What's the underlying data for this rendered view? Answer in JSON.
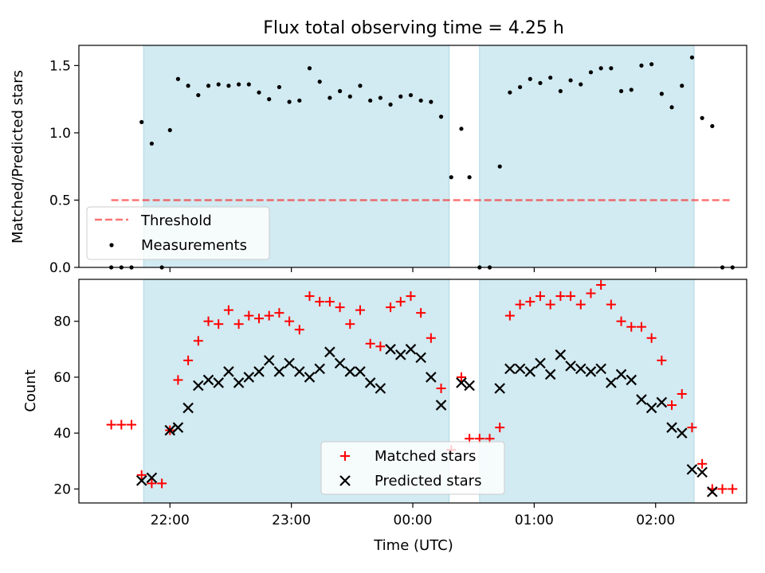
{
  "title": "Flux total observing time = 4.25 h",
  "colors": {
    "shade": "#add8e6",
    "threshold": "#ff0000",
    "measurement": "#000000",
    "matched": "#ff0000",
    "predicted": "#000000"
  },
  "chart_data": [
    {
      "type": "scatter",
      "panel": "top",
      "title": "Flux total observing time = 4.25 h",
      "xlabel": "",
      "ylabel": "Matched/Predicted stars",
      "xlim": [
        "21:15",
        "02:45"
      ],
      "ylim": [
        0,
        1.65
      ],
      "yticks": [
        "0.0",
        "0.5",
        "1.0",
        "1.5"
      ],
      "legend_position": "lower-left",
      "shaded_intervals": [
        [
          "21:47",
          "00:18"
        ],
        [
          "00:33",
          "02:19"
        ]
      ],
      "threshold": {
        "name": "Threshold",
        "y": 0.5,
        "x_range": [
          "21:31",
          "02:38"
        ]
      },
      "series": [
        {
          "name": "Measurements",
          "points": [
            [
              "21:31",
              0
            ],
            [
              "21:36",
              0
            ],
            [
              "21:41",
              0
            ],
            [
              "21:46",
              1.08
            ],
            [
              "21:51",
              0.92
            ],
            [
              "21:56",
              0
            ],
            [
              "22:00",
              1.02
            ],
            [
              "22:04",
              1.4
            ],
            [
              "22:09",
              1.35
            ],
            [
              "22:14",
              1.28
            ],
            [
              "22:19",
              1.35
            ],
            [
              "22:24",
              1.36
            ],
            [
              "22:29",
              1.35
            ],
            [
              "22:34",
              1.36
            ],
            [
              "22:39",
              1.36
            ],
            [
              "22:44",
              1.3
            ],
            [
              "22:49",
              1.25
            ],
            [
              "22:54",
              1.34
            ],
            [
              "22:59",
              1.23
            ],
            [
              "23:04",
              1.24
            ],
            [
              "23:09",
              1.48
            ],
            [
              "23:14",
              1.38
            ],
            [
              "23:19",
              1.26
            ],
            [
              "23:24",
              1.31
            ],
            [
              "23:29",
              1.27
            ],
            [
              "23:34",
              1.35
            ],
            [
              "23:39",
              1.24
            ],
            [
              "23:44",
              1.26
            ],
            [
              "23:49",
              1.21
            ],
            [
              "23:54",
              1.27
            ],
            [
              "23:59",
              1.28
            ],
            [
              "00:04",
              1.24
            ],
            [
              "00:09",
              1.23
            ],
            [
              "00:14",
              1.12
            ],
            [
              "00:19",
              0.67
            ],
            [
              "00:24",
              1.03
            ],
            [
              "00:28",
              0.67
            ],
            [
              "00:33",
              0
            ],
            [
              "00:38",
              0
            ],
            [
              "00:43",
              0.75
            ],
            [
              "00:48",
              1.3
            ],
            [
              "00:53",
              1.34
            ],
            [
              "00:58",
              1.4
            ],
            [
              "01:03",
              1.37
            ],
            [
              "01:08",
              1.41
            ],
            [
              "01:13",
              1.31
            ],
            [
              "01:18",
              1.39
            ],
            [
              "01:23",
              1.36
            ],
            [
              "01:28",
              1.45
            ],
            [
              "01:33",
              1.48
            ],
            [
              "01:38",
              1.48
            ],
            [
              "01:43",
              1.31
            ],
            [
              "01:48",
              1.32
            ],
            [
              "01:53",
              1.5
            ],
            [
              "01:58",
              1.51
            ],
            [
              "02:03",
              1.29
            ],
            [
              "02:08",
              1.19
            ],
            [
              "02:13",
              1.35
            ],
            [
              "02:18",
              1.56
            ],
            [
              "02:23",
              1.11
            ],
            [
              "02:28",
              1.05
            ],
            [
              "02:33",
              0
            ],
            [
              "02:38",
              0
            ]
          ]
        }
      ]
    },
    {
      "type": "scatter",
      "panel": "bottom",
      "xlabel": "Time (UTC)",
      "ylabel": "Count",
      "xlim": [
        "21:15",
        "02:45"
      ],
      "ylim": [
        15,
        95
      ],
      "yticks": [
        "20",
        "40",
        "60",
        "80"
      ],
      "xticks": [
        "22:00",
        "23:00",
        "00:00",
        "01:00",
        "02:00"
      ],
      "legend_position": "lower-center",
      "shaded_intervals": [
        [
          "21:47",
          "00:18"
        ],
        [
          "00:33",
          "02:19"
        ]
      ],
      "series": [
        {
          "name": "Matched stars",
          "marker": "plus",
          "points": [
            [
              "21:31",
              43
            ],
            [
              "21:36",
              43
            ],
            [
              "21:41",
              43
            ],
            [
              "21:46",
              25
            ],
            [
              "21:51",
              22
            ],
            [
              "21:56",
              22
            ],
            [
              "22:00",
              41
            ],
            [
              "22:04",
              59
            ],
            [
              "22:09",
              66
            ],
            [
              "22:14",
              73
            ],
            [
              "22:19",
              80
            ],
            [
              "22:24",
              79
            ],
            [
              "22:29",
              84
            ],
            [
              "22:34",
              79
            ],
            [
              "22:39",
              82
            ],
            [
              "22:44",
              81
            ],
            [
              "22:49",
              82
            ],
            [
              "22:54",
              83
            ],
            [
              "22:59",
              80
            ],
            [
              "23:04",
              77
            ],
            [
              "23:09",
              89
            ],
            [
              "23:14",
              87
            ],
            [
              "23:19",
              87
            ],
            [
              "23:24",
              85
            ],
            [
              "23:29",
              79
            ],
            [
              "23:34",
              84
            ],
            [
              "23:39",
              72
            ],
            [
              "23:44",
              71
            ],
            [
              "23:49",
              85
            ],
            [
              "23:54",
              87
            ],
            [
              "23:59",
              89
            ],
            [
              "00:04",
              83
            ],
            [
              "00:09",
              74
            ],
            [
              "00:14",
              56
            ],
            [
              "00:19",
              34
            ],
            [
              "00:24",
              60
            ],
            [
              "00:28",
              38
            ],
            [
              "00:33",
              38
            ],
            [
              "00:38",
              38
            ],
            [
              "00:43",
              42
            ],
            [
              "00:48",
              82
            ],
            [
              "00:53",
              86
            ],
            [
              "00:58",
              87
            ],
            [
              "01:03",
              89
            ],
            [
              "01:08",
              86
            ],
            [
              "01:13",
              89
            ],
            [
              "01:18",
              89
            ],
            [
              "01:23",
              86
            ],
            [
              "01:28",
              90
            ],
            [
              "01:33",
              93
            ],
            [
              "01:38",
              86
            ],
            [
              "01:43",
              80
            ],
            [
              "01:48",
              78
            ],
            [
              "01:53",
              78
            ],
            [
              "01:58",
              74
            ],
            [
              "02:03",
              66
            ],
            [
              "02:08",
              50
            ],
            [
              "02:13",
              54
            ],
            [
              "02:18",
              42
            ],
            [
              "02:23",
              29
            ],
            [
              "02:28",
              20
            ],
            [
              "02:33",
              20
            ],
            [
              "02:38",
              20
            ]
          ]
        },
        {
          "name": "Predicted stars",
          "marker": "x",
          "points": [
            [
              "21:46",
              23
            ],
            [
              "21:51",
              24
            ],
            [
              "22:00",
              41
            ],
            [
              "22:04",
              42
            ],
            [
              "22:09",
              49
            ],
            [
              "22:14",
              57
            ],
            [
              "22:19",
              59
            ],
            [
              "22:24",
              58
            ],
            [
              "22:29",
              62
            ],
            [
              "22:34",
              58
            ],
            [
              "22:39",
              60
            ],
            [
              "22:44",
              62
            ],
            [
              "22:49",
              66
            ],
            [
              "22:54",
              62
            ],
            [
              "22:59",
              65
            ],
            [
              "23:04",
              62
            ],
            [
              "23:09",
              60
            ],
            [
              "23:14",
              63
            ],
            [
              "23:19",
              69
            ],
            [
              "23:24",
              65
            ],
            [
              "23:29",
              62
            ],
            [
              "23:34",
              62
            ],
            [
              "23:39",
              58
            ],
            [
              "23:44",
              56
            ],
            [
              "23:49",
              70
            ],
            [
              "23:54",
              68
            ],
            [
              "23:59",
              70
            ],
            [
              "00:04",
              67
            ],
            [
              "00:09",
              60
            ],
            [
              "00:14",
              50
            ],
            [
              "00:24",
              58
            ],
            [
              "00:28",
              57
            ],
            [
              "00:43",
              56
            ],
            [
              "00:48",
              63
            ],
            [
              "00:53",
              63
            ],
            [
              "00:58",
              62
            ],
            [
              "01:03",
              65
            ],
            [
              "01:08",
              61
            ],
            [
              "01:13",
              68
            ],
            [
              "01:18",
              64
            ],
            [
              "01:23",
              63
            ],
            [
              "01:28",
              62
            ],
            [
              "01:33",
              63
            ],
            [
              "01:38",
              58
            ],
            [
              "01:43",
              61
            ],
            [
              "01:48",
              59
            ],
            [
              "01:53",
              52
            ],
            [
              "01:58",
              49
            ],
            [
              "02:03",
              51
            ],
            [
              "02:08",
              42
            ],
            [
              "02:13",
              40
            ],
            [
              "02:18",
              27
            ],
            [
              "02:23",
              26
            ],
            [
              "02:28",
              19
            ]
          ]
        }
      ]
    }
  ]
}
